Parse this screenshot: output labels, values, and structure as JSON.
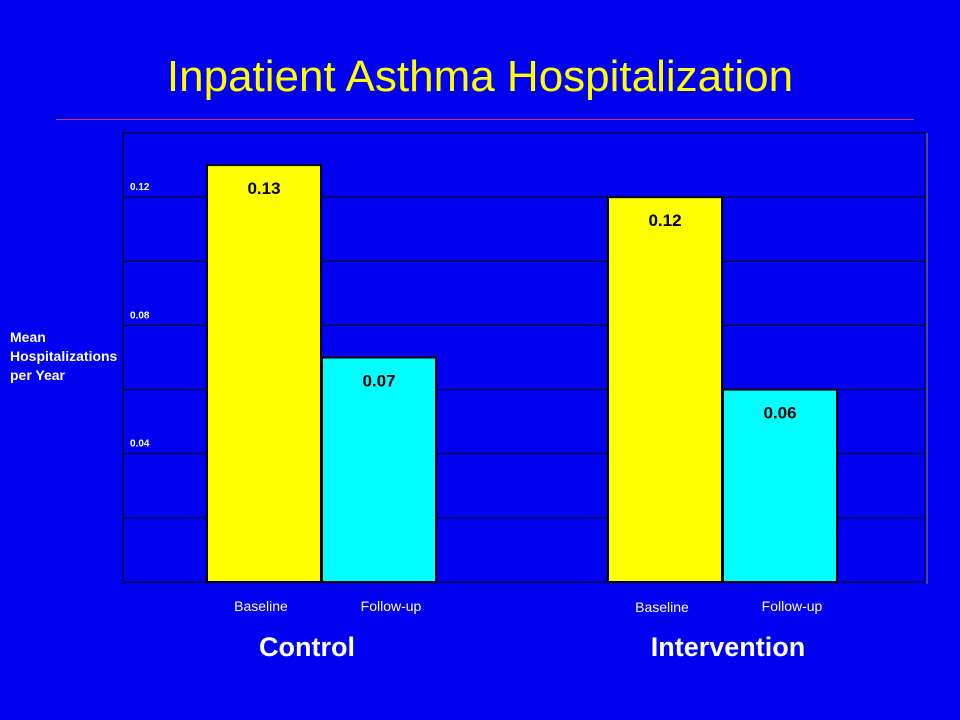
{
  "chart_data": {
    "type": "bar",
    "title": "Inpatient Asthma Hospitalization",
    "ylabel_lines": [
      "Mean",
      "Hospitalizations",
      "per Year"
    ],
    "ylim": [
      0,
      0.14
    ],
    "yticks": [
      0.04,
      0.08,
      0.12
    ],
    "ytick_labels": [
      "0.04",
      "0.08",
      "0.12"
    ],
    "gridlines": [
      0.02,
      0.04,
      0.06,
      0.08,
      0.1,
      0.12
    ],
    "grid": true,
    "categories": [
      "Control",
      "Intervention"
    ],
    "series": [
      {
        "name": "Baseline",
        "color": "#ffff00",
        "values": [
          0.13,
          0.12
        ],
        "labels": [
          "0.13",
          "0.12"
        ]
      },
      {
        "name": "Follow-up",
        "color": "#00ffff",
        "values": [
          0.07,
          0.06
        ],
        "labels": [
          "0.07",
          "0.06"
        ]
      }
    ]
  },
  "colors": {
    "background": "#0000f0",
    "title": "#ffff00",
    "text": "#ffffff"
  }
}
